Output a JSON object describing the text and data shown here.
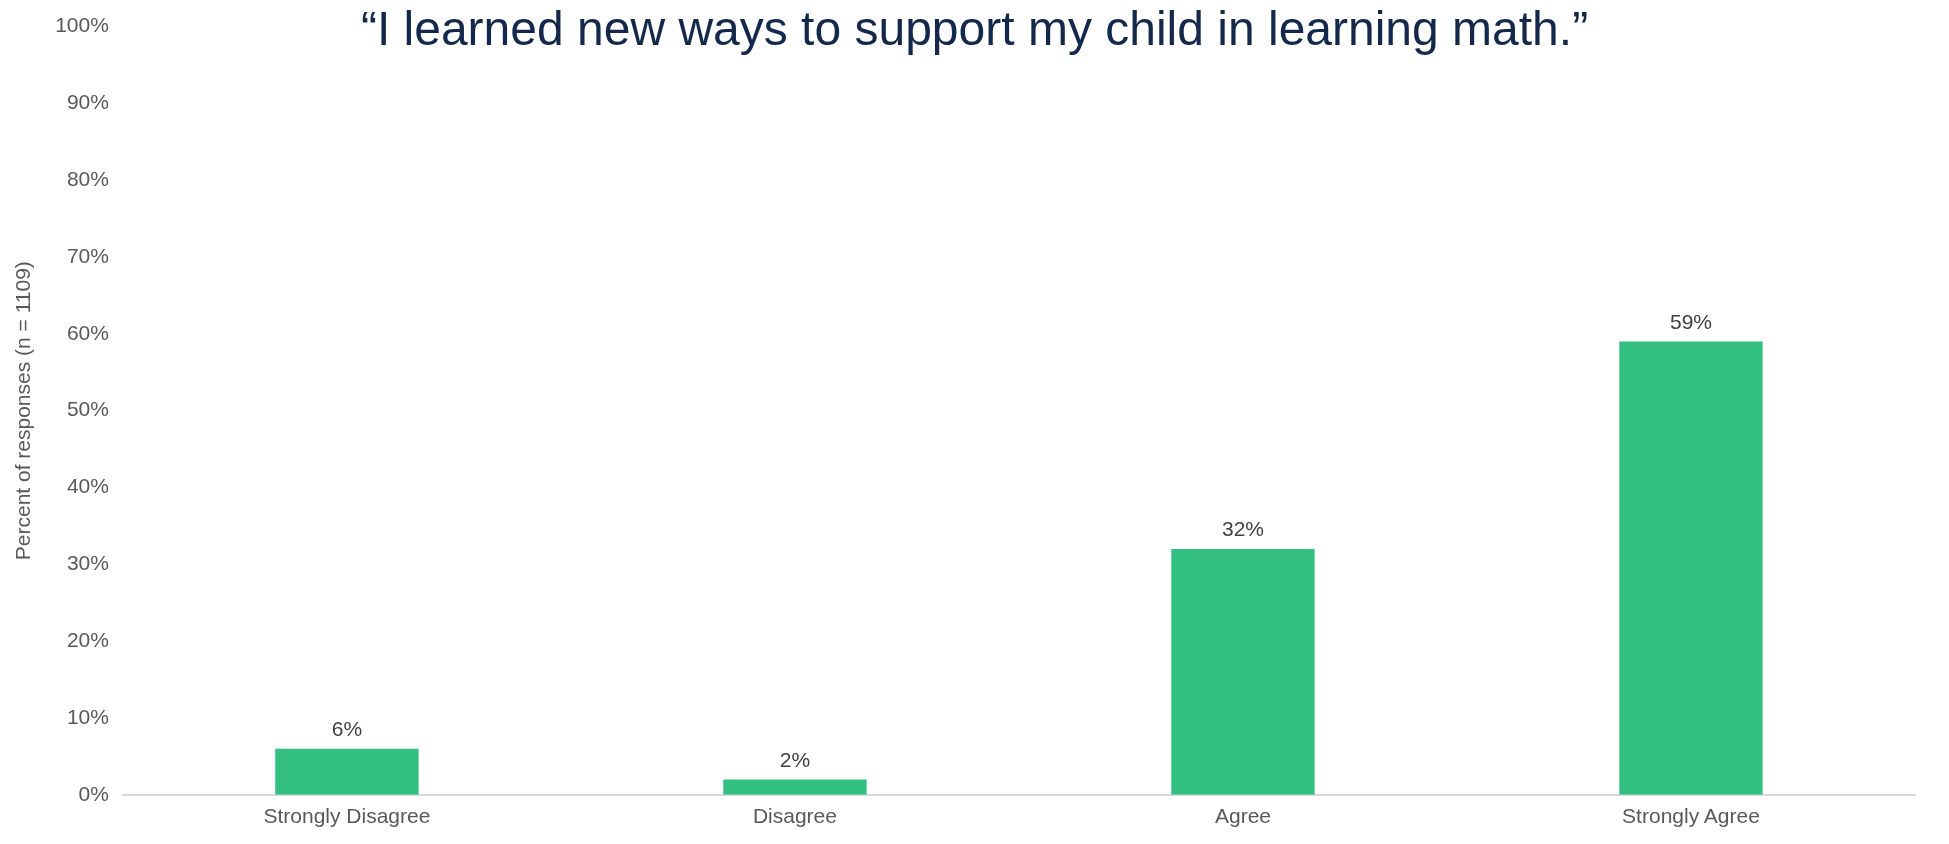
{
  "chart_data": {
    "type": "bar",
    "title": "“I learned new ways to support my child in learning math.”",
    "ylabel": "Percent of responses (n = 1109)",
    "categories": [
      "Strongly Disagree",
      "Disagree",
      "Agree",
      "Strongly Agree"
    ],
    "values": [
      6,
      2,
      32,
      59
    ],
    "color": "#33bf80",
    "ylim": [
      0,
      100
    ],
    "yticks": [
      {
        "value": 0,
        "label": "0%"
      },
      {
        "value": 10,
        "label": "10%"
      },
      {
        "value": 20,
        "label": "20%"
      },
      {
        "value": 30,
        "label": "30%"
      },
      {
        "value": 40,
        "label": "40%"
      },
      {
        "value": 50,
        "label": "50%"
      },
      {
        "value": 60,
        "label": "60%"
      },
      {
        "value": 70,
        "label": "70%"
      },
      {
        "value": 80,
        "label": "80%"
      },
      {
        "value": 90,
        "label": "90%"
      },
      {
        "value": 100,
        "label": "100%"
      }
    ],
    "value_labels": [
      "6%",
      "2%",
      "32%",
      "59%"
    ],
    "grid": false,
    "legend": false
  }
}
